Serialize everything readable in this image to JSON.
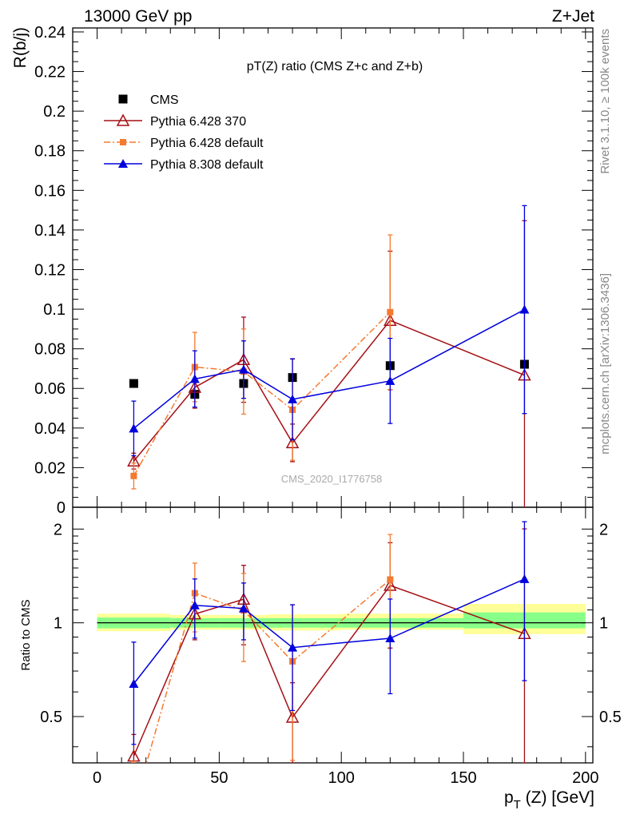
{
  "header": {
    "left": "13000 GeV pp",
    "right": "Z+Jet",
    "plot_title": "pT(Z) ratio (CMS  Z+c and Z+b)",
    "side_top": "Rivet 3.1.10, ≥ 100k events",
    "side_bottom": "mcplots.cern.ch [arXiv:1306.3436]",
    "watermark": "CMS_2020_I1776758",
    "ratio_ylabel": "Ratio to CMS"
  },
  "chart_data": {
    "type": "scatter",
    "xlabel": "p_T (Z) [GeV]",
    "ylabel": "R(b/j)",
    "xlim": [
      -10,
      203
    ],
    "ylim": [
      0,
      0.242
    ],
    "ratio_ylim": [
      0.355,
      2.35
    ],
    "ratio_log_scale": true,
    "legend_position": "top-left",
    "xticks": [
      0,
      50,
      100,
      150,
      200
    ],
    "yticks": [
      0,
      0.02,
      0.04,
      0.06,
      0.08,
      0.1,
      0.12,
      0.14,
      0.16,
      0.18,
      0.2,
      0.22,
      0.24
    ],
    "ytick_labels": [
      "0",
      "0.02",
      "0.04",
      "0.06",
      "0.08",
      "0.1",
      "0.12",
      "0.14",
      "0.16",
      "0.18",
      "0.2",
      "0.22",
      "0.24"
    ],
    "ratio_ticks": [
      0.5,
      1,
      2
    ],
    "ratio_tick_labels": [
      "0.5",
      "1",
      "2"
    ],
    "bins": [
      [
        0,
        30
      ],
      [
        30,
        50
      ],
      [
        50,
        70
      ],
      [
        70,
        100
      ],
      [
        100,
        150
      ],
      [
        150,
        200
      ]
    ],
    "band_green": [
      [
        0.96,
        1.04
      ],
      [
        0.965,
        1.035
      ],
      [
        0.965,
        1.035
      ],
      [
        0.965,
        1.035
      ],
      [
        0.965,
        1.035
      ],
      [
        0.96,
        1.08
      ]
    ],
    "band_yellow": [
      [
        0.94,
        1.07
      ],
      [
        0.95,
        1.06
      ],
      [
        0.95,
        1.06
      ],
      [
        0.945,
        1.065
      ],
      [
        0.95,
        1.07
      ],
      [
        0.92,
        1.15
      ]
    ],
    "series": [
      {
        "name": "CMS",
        "color": "#000000",
        "marker": "square",
        "line": "none",
        "x": [
          15,
          40,
          60,
          80,
          120,
          175
        ],
        "y": [
          0.0625,
          0.057,
          0.0625,
          0.0655,
          0.0715,
          0.0722
        ],
        "ratio": [
          1,
          1,
          1,
          1,
          1,
          1
        ]
      },
      {
        "name": "Pythia 6.428 370",
        "color": "#a50f15",
        "marker": "open-triangle",
        "line": "solid",
        "x": [
          15,
          40,
          60,
          80,
          120,
          175
        ],
        "y": [
          0.0233,
          0.0605,
          0.0745,
          0.0325,
          0.0943,
          0.0667
        ],
        "err": [
          0.004,
          0.0105,
          0.0215,
          0.0095,
          0.035,
          0.078
        ],
        "ratio": [
          0.373,
          1.067,
          1.19,
          0.497,
          1.318,
          0.923
        ],
        "ratio_err": [
          0.065,
          0.185,
          0.34,
          0.145,
          0.49,
          1.08
        ]
      },
      {
        "name": "Pythia 6.428 default",
        "color": "#f47a30",
        "marker": "square",
        "line": "dashdot",
        "x": [
          15,
          40,
          60,
          80,
          120,
          175
        ],
        "y": [
          0.0158,
          0.0708,
          0.0685,
          0.0492,
          0.0985,
          null
        ],
        "err": [
          0.0065,
          0.0175,
          0.0215,
          0.0255,
          0.039,
          null
        ],
        "ratio": [
          0.254,
          1.245,
          1.096,
          0.752,
          1.377,
          null
        ],
        "ratio_err": [
          0.105,
          0.31,
          0.345,
          0.39,
          0.545,
          null
        ]
      },
      {
        "name": "Pythia 8.308 default",
        "color": "#0000dd",
        "marker": "triangle",
        "line": "solid",
        "x": [
          15,
          40,
          60,
          80,
          120,
          175
        ],
        "y": [
          0.0398,
          0.0648,
          0.0695,
          0.0545,
          0.0638,
          0.0998
        ],
        "err": [
          0.0138,
          0.0142,
          0.0145,
          0.0205,
          0.0215,
          0.0525
        ],
        "ratio": [
          0.637,
          1.138,
          1.112,
          0.833,
          0.892,
          1.382
        ],
        "ratio_err": [
          0.23,
          0.245,
          0.23,
          0.31,
          0.3,
          0.73
        ]
      }
    ]
  }
}
